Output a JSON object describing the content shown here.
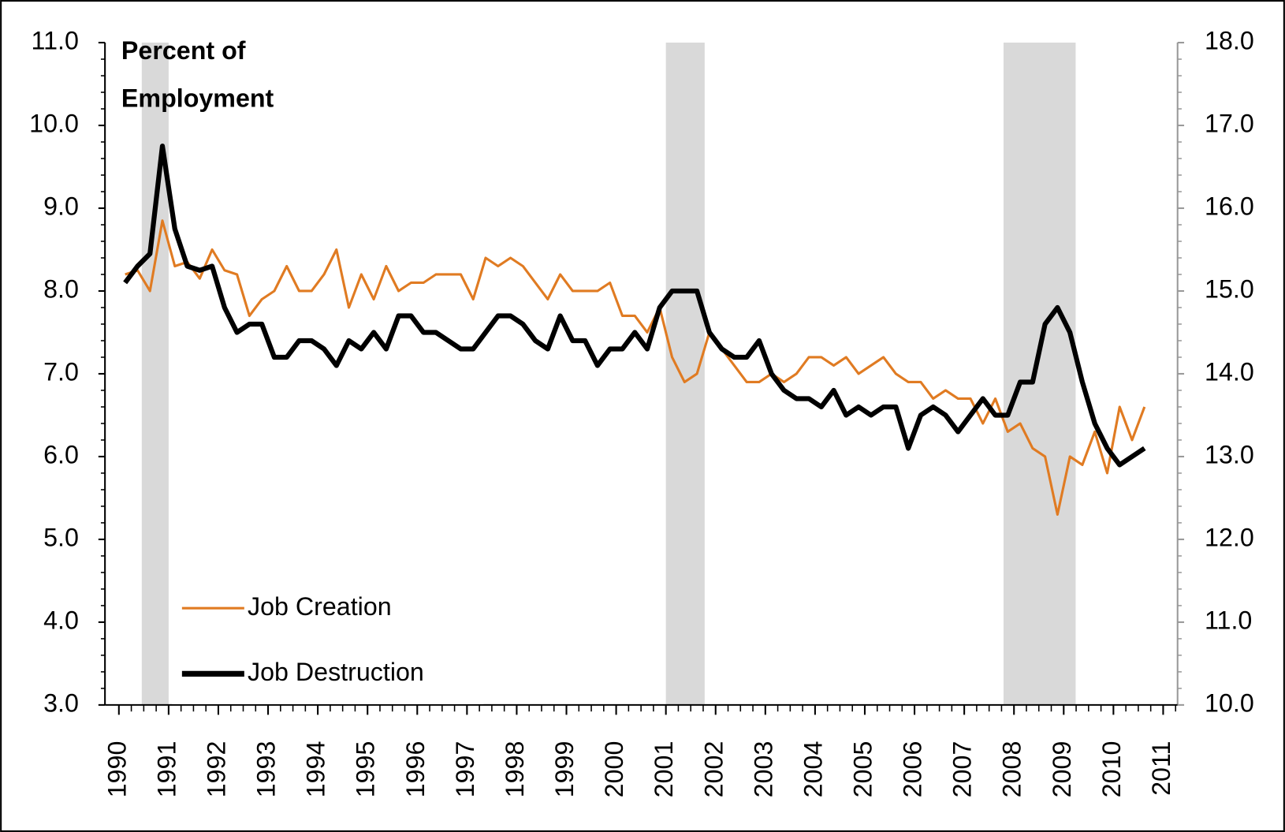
{
  "chart_data": {
    "type": "line",
    "annotation": [
      "Percent of",
      "Employment"
    ],
    "x": [
      1990.125,
      1990.375,
      1990.625,
      1990.875,
      1991.125,
      1991.375,
      1991.625,
      1991.875,
      1992.125,
      1992.375,
      1992.625,
      1992.875,
      1993.125,
      1993.375,
      1993.625,
      1993.875,
      1994.125,
      1994.375,
      1994.625,
      1994.875,
      1995.125,
      1995.375,
      1995.625,
      1995.875,
      1996.125,
      1996.375,
      1996.625,
      1996.875,
      1997.125,
      1997.375,
      1997.625,
      1997.875,
      1998.125,
      1998.375,
      1998.625,
      1998.875,
      1999.125,
      1999.375,
      1999.625,
      1999.875,
      2000.125,
      2000.375,
      2000.625,
      2000.875,
      2001.125,
      2001.375,
      2001.625,
      2001.875,
      2002.125,
      2002.375,
      2002.625,
      2002.875,
      2003.125,
      2003.375,
      2003.625,
      2003.875,
      2004.125,
      2004.375,
      2004.625,
      2004.875,
      2005.125,
      2005.375,
      2005.625,
      2005.875,
      2006.125,
      2006.375,
      2006.625,
      2006.875,
      2007.125,
      2007.375,
      2007.625,
      2007.875,
      2008.125,
      2008.375,
      2008.625,
      2008.875,
      2009.125,
      2009.375,
      2009.625,
      2009.875,
      2010.125,
      2010.375,
      2010.625
    ],
    "series": [
      {
        "name": "Job Creation",
        "color": "#e07b22",
        "axis": "y",
        "values": [
          8.2,
          8.25,
          8.0,
          8.85,
          8.3,
          8.35,
          8.15,
          8.5,
          8.25,
          8.2,
          7.7,
          7.9,
          8.0,
          8.3,
          8.0,
          8.0,
          8.2,
          8.5,
          7.8,
          8.2,
          7.9,
          8.3,
          8.0,
          8.1,
          8.1,
          8.2,
          8.2,
          8.2,
          7.9,
          8.4,
          8.3,
          8.4,
          8.3,
          8.1,
          7.9,
          8.2,
          8.0,
          8.0,
          8.0,
          8.1,
          7.7,
          7.7,
          7.5,
          7.8,
          7.2,
          6.9,
          7.0,
          7.5,
          7.3,
          7.1,
          6.9,
          6.9,
          7.0,
          6.9,
          7.0,
          7.2,
          7.2,
          7.1,
          7.2,
          7.0,
          7.1,
          7.2,
          7.0,
          6.9,
          6.9,
          6.7,
          6.8,
          6.7,
          6.7,
          6.4,
          6.7,
          6.3,
          6.4,
          6.1,
          6.0,
          5.3,
          6.0,
          5.9,
          6.3,
          5.8,
          6.6,
          6.2,
          6.6
        ]
      },
      {
        "name": "Job Destruction",
        "color": "#000000",
        "axis": "y2",
        "values": [
          15.1,
          15.3,
          15.45,
          16.75,
          15.75,
          15.3,
          15.25,
          15.3,
          14.8,
          14.5,
          14.6,
          14.6,
          14.2,
          14.2,
          14.4,
          14.4,
          14.3,
          14.1,
          14.4,
          14.3,
          14.5,
          14.3,
          14.7,
          14.7,
          14.5,
          14.5,
          14.4,
          14.3,
          14.3,
          14.5,
          14.7,
          14.7,
          14.6,
          14.4,
          14.3,
          14.7,
          14.4,
          14.4,
          14.1,
          14.3,
          14.3,
          14.5,
          14.3,
          14.8,
          15.0,
          15.0,
          15.0,
          14.5,
          14.3,
          14.2,
          14.2,
          14.4,
          14.0,
          13.8,
          13.7,
          13.7,
          13.6,
          13.8,
          13.5,
          13.6,
          13.5,
          13.6,
          13.6,
          13.1,
          13.5,
          13.6,
          13.5,
          13.3,
          13.5,
          13.7,
          13.5,
          13.5,
          13.9,
          13.9,
          14.6,
          14.8,
          14.5,
          13.9,
          13.4,
          13.1,
          12.9,
          13.0,
          13.1
        ]
      }
    ],
    "shaded_ranges": [
      [
        1990.46,
        1991.0
      ],
      [
        2001.0,
        2001.78
      ],
      [
        2007.79,
        2009.24
      ]
    ],
    "xlim": [
      1989.72,
      2011.29
    ],
    "xticks": [
      1990,
      1991,
      1992,
      1993,
      1994,
      1995,
      1996,
      1997,
      1998,
      1999,
      2000,
      2001,
      2002,
      2003,
      2004,
      2005,
      2006,
      2007,
      2008,
      2009,
      2010,
      2011
    ],
    "ylim": [
      3,
      11
    ],
    "yticks": [
      {
        "value": 3,
        "label": "3.0"
      },
      {
        "value": 4,
        "label": "4.0"
      },
      {
        "value": 5,
        "label": "5.0"
      },
      {
        "value": 6,
        "label": "6.0"
      },
      {
        "value": 7,
        "label": "7.0"
      },
      {
        "value": 8,
        "label": "8.0"
      },
      {
        "value": 9,
        "label": "9.0"
      },
      {
        "value": 10,
        "label": "10.0"
      },
      {
        "value": 11,
        "label": "11.0"
      }
    ],
    "y2lim": [
      10,
      18
    ],
    "y2ticks": [
      {
        "value": 10,
        "label": "10.0"
      },
      {
        "value": 11,
        "label": "11.0"
      },
      {
        "value": 12,
        "label": "12.0"
      },
      {
        "value": 13,
        "label": "13.0"
      },
      {
        "value": 14,
        "label": "14.0"
      },
      {
        "value": 15,
        "label": "15.0"
      },
      {
        "value": 16,
        "label": "16.0"
      },
      {
        "value": 17,
        "label": "17.0"
      },
      {
        "value": 18,
        "label": "18.0"
      }
    ],
    "grid": false,
    "legend": "lower left",
    "shade_color": "#d9d9d9"
  }
}
